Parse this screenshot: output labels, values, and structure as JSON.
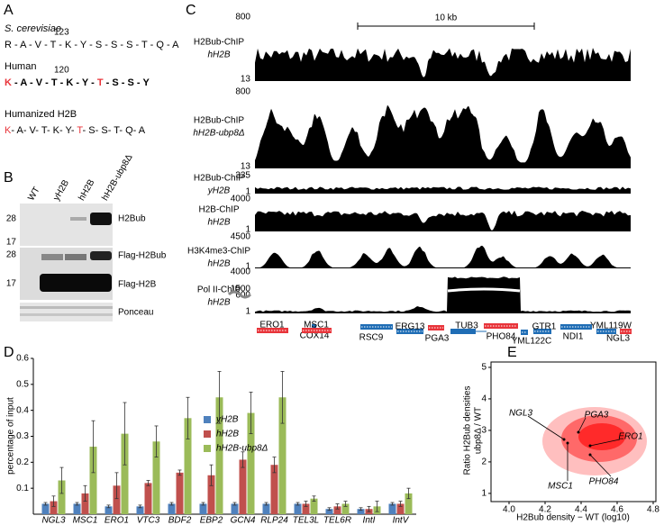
{
  "panel_labels": [
    "A",
    "B",
    "C",
    "D",
    "E"
  ],
  "panel_a": {
    "rows": [
      {
        "organism": "S. cerevisiae",
        "position": "123",
        "sequence": "R - A - V - T - K - Y - S - S - S - T - Q - A",
        "highlight": [],
        "bold": false,
        "italic": true
      },
      {
        "organism": "Human",
        "position": "120",
        "sequence": "K - A - V - T - K - Y - T - S - S - Y",
        "highlight": [
          0,
          24
        ],
        "bold": true,
        "italic": false
      },
      {
        "organism": "Humanized H2B",
        "sequence": "K- A- V- T- K- Y- T- S- S- T- Q- A",
        "highlight": [
          0,
          18
        ],
        "bold": false,
        "italic": false
      }
    ]
  },
  "panel_b": {
    "lanes": [
      "WT",
      "yH2B",
      "hH2B",
      "hH2B-ubp8Δ"
    ],
    "markers": [
      "28",
      "17",
      "28",
      "17"
    ],
    "bands": [
      "H2Bub",
      "Flag-H2Bub",
      "Flag-H2B",
      "Ponceau"
    ]
  },
  "panel_c": {
    "scale_bar": "10 kb",
    "tracks": [
      {
        "label": "H2Bub-ChIP",
        "sample": "hH2B",
        "max": "800",
        "min": "13"
      },
      {
        "label": "H2Bub-ChIP",
        "sample": "hH2B-ubp8Δ",
        "max": "800",
        "min": "13"
      },
      {
        "label": "H2Bub-ChIP",
        "sample": "yH2B",
        "max": "335",
        "min": "1"
      },
      {
        "label": "H2B-ChIP",
        "sample": "hH2B",
        "max": "4000",
        "min": "1"
      },
      {
        "label": "H3K4me3-ChIP",
        "sample": "hH2B",
        "max": "4500",
        "min": "1"
      },
      {
        "label": "Pol II-ChIP",
        "sample": "hH2B",
        "max": "4000",
        "min": "1",
        "breaks": [
          "1500",
          "600"
        ]
      }
    ],
    "genes": [
      {
        "name": "ERO1",
        "color": "#e8343a"
      },
      {
        "name": "COX14",
        "color": "#1f6db5"
      },
      {
        "name": "MSC1",
        "color": "#e8343a"
      },
      {
        "name": "RSC9",
        "color": "#1f6db5"
      },
      {
        "name": "ERG13",
        "color": "#1f6db5"
      },
      {
        "name": "PGA3",
        "color": "#e8343a"
      },
      {
        "name": "TUB3",
        "color": "#1f6db5"
      },
      {
        "name": "PHO84",
        "color": "#e8343a"
      },
      {
        "name": "YML122C",
        "color": "#1f6db5"
      },
      {
        "name": "GTR1",
        "color": "#1f6db5"
      },
      {
        "name": "NDI1",
        "color": "#1f6db5"
      },
      {
        "name": "YML119W",
        "color": "#1f6db5"
      },
      {
        "name": "NGL3",
        "color": "#e8343a"
      }
    ]
  },
  "chart_data": [
    {
      "type": "bar",
      "ylabel": "percentage of input",
      "categories": [
        "NGL3",
        "MSC1",
        "ERO1",
        "VTC3",
        "BDF2",
        "EBP2",
        "GCN4",
        "RLP24",
        "TEL3L",
        "TEL6R",
        "IntI",
        "IntV"
      ],
      "series": [
        {
          "name": "yH2B",
          "color": "#4f81bd",
          "values": [
            0.04,
            0.04,
            0.03,
            0.03,
            0.04,
            0.04,
            0.04,
            0.04,
            0.04,
            0.02,
            0.02,
            0.04
          ],
          "errors": [
            0.005,
            0.005,
            0.005,
            0.005,
            0.005,
            0.005,
            0.005,
            0.005,
            0.005,
            0.005,
            0.005,
            0.005
          ]
        },
        {
          "name": "hH2B",
          "color": "#c0504d",
          "values": [
            0.05,
            0.08,
            0.11,
            0.12,
            0.16,
            0.15,
            0.21,
            0.19,
            0.04,
            0.03,
            0.02,
            0.04
          ],
          "errors": [
            0.02,
            0.03,
            0.05,
            0.01,
            0.01,
            0.04,
            0.03,
            0.03,
            0.01,
            0.01,
            0.01,
            0.01
          ]
        },
        {
          "name": "hH2B-ubp8Δ",
          "color": "#9bbb59",
          "values": [
            0.13,
            0.26,
            0.31,
            0.28,
            0.37,
            0.45,
            0.39,
            0.45,
            0.06,
            0.04,
            0.03,
            0.08
          ],
          "errors": [
            0.05,
            0.1,
            0.12,
            0.06,
            0.08,
            0.1,
            0.08,
            0.1,
            0.01,
            0.01,
            0.02,
            0.02
          ]
        }
      ],
      "ylim": [
        0,
        0.6
      ],
      "yticks": [
        0.1,
        0.2,
        0.3,
        0.4,
        0.5,
        0.6
      ],
      "legend": "center"
    },
    {
      "type": "scatter",
      "xlabel": "H2Bub density − WT (log10)",
      "ylabel": [
        "Ratio H2Bub densities",
        "ubp8Δ / WT"
      ],
      "xlim": [
        3.9,
        4.815
      ],
      "ylim": [
        0.74,
        5.17
      ],
      "xticks": [
        {
          "value": 4,
          "label": "4.0"
        },
        {
          "value": 4.2,
          "label": "4.2"
        },
        {
          "value": 4.4,
          "label": "4.4"
        },
        {
          "value": 4.6,
          "label": "4.6"
        },
        {
          "value": 4.8,
          "label": "4.8"
        }
      ],
      "yticks": [
        1,
        2,
        3,
        4,
        5
      ],
      "color": "#ff0000",
      "annotations": [
        "NGL3",
        "PGA3",
        "ERO1",
        "MSC1",
        "PHO84"
      ]
    }
  ]
}
